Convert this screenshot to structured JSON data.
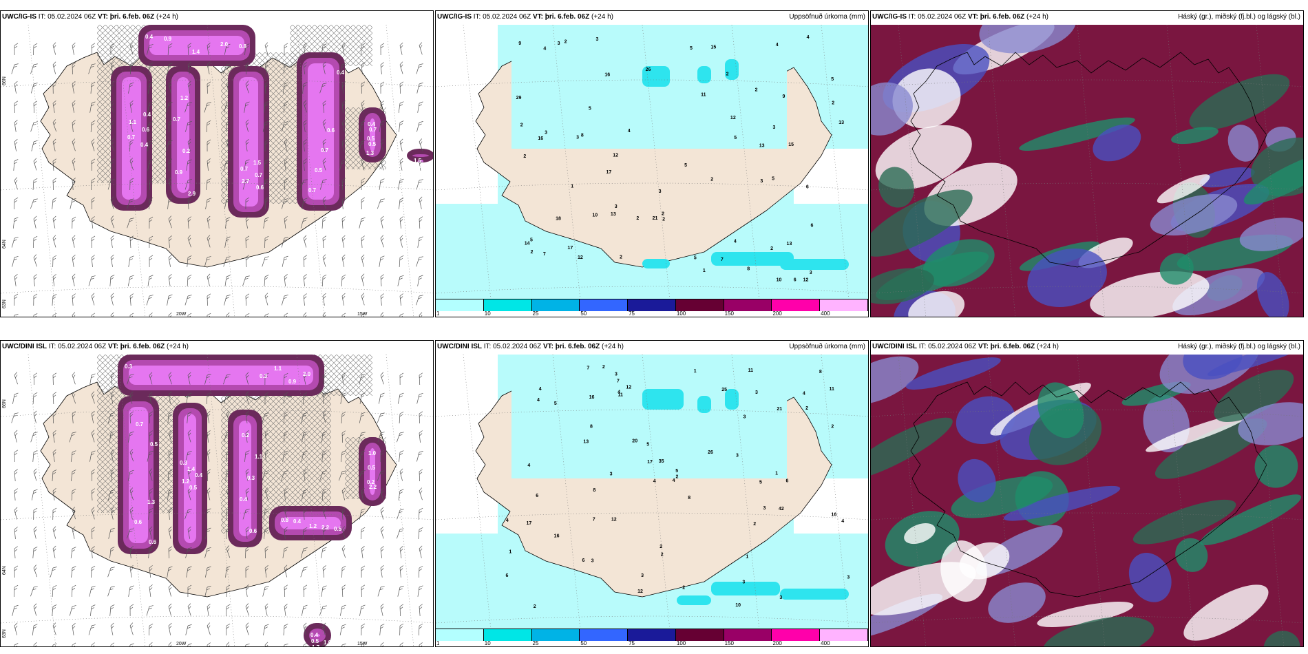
{
  "rows": [
    {
      "model": "UWC/IG-IS",
      "init_label": "IT:",
      "init": "05.02.2024 06Z",
      "valid_label": "VT:",
      "valid": "þri. 6.feb. 06Z",
      "lead": "(+24 h)",
      "icing_values": [
        "0.4",
        "0.4",
        "0.2",
        "0.6",
        "0.4",
        "0.7",
        "0.3",
        "2.0",
        "1.1",
        "0.9",
        "2.7",
        "0.7",
        "0.5",
        "0.4",
        "1.4",
        "0.6",
        "2.9",
        "0.7",
        "0.5",
        "0.4",
        "1.5",
        "0.9",
        "0.7",
        "1.2",
        "0.7",
        "0.7",
        "0.5",
        "1.3",
        "0.8",
        "0.4",
        "0.7",
        "1.5",
        "0.6",
        "1.3"
      ],
      "precip_values": [
        "3",
        "3",
        "3",
        "5",
        "12",
        "16",
        "21",
        "17",
        "13",
        "13",
        "15",
        "5",
        "9",
        "10",
        "12",
        "4",
        "5",
        "13",
        "5",
        "4",
        "6",
        "8",
        "7",
        "10",
        "13",
        "5",
        "5",
        "5",
        "9",
        "14",
        "3",
        "2",
        "7",
        "6",
        "2",
        "2",
        "3",
        "2",
        "1",
        "2",
        "2",
        "3",
        "6",
        "8",
        "2",
        "2",
        "2",
        "5",
        "3",
        "2",
        "1",
        "3",
        "2",
        "4",
        "2",
        "12",
        "12",
        "4",
        "18",
        "17",
        "15",
        "26",
        "29",
        "3",
        "2",
        "16",
        "4",
        "11"
      ],
      "lon_labels": [
        "20W",
        "15W"
      ],
      "lat_labels": [
        "66N",
        "64N",
        "63N"
      ]
    },
    {
      "model": "UWC/DINI ISL",
      "init_label": "IT:",
      "init": "05.02.2024 06Z",
      "valid_label": "VT:",
      "valid": "þri. 6.feb. 06Z",
      "lead": "(+24 h)",
      "icing_values": [
        "0.3",
        "0.5",
        "0.5",
        "0.6",
        "1.2",
        "2.2",
        "1.7",
        "2.0",
        "0.7",
        "1.2",
        "0.2",
        "0.8",
        "1.0",
        "0.5",
        "0.9",
        "0.6",
        "0.4",
        "1.1",
        "2.2",
        "0.5",
        "0.4",
        "1.1",
        "0.6",
        "1.4",
        "0.3",
        "0.4",
        "0.2",
        "1.0",
        "0.3",
        "1.3",
        "0.3",
        "0.4",
        "0.5"
      ],
      "precip_values": [
        "4",
        "4",
        "4",
        "3",
        "10",
        "2",
        "6",
        "3",
        "3",
        "8",
        "12",
        "17",
        "20",
        "16",
        "16",
        "11",
        "16",
        "7",
        "8",
        "8",
        "11",
        "12",
        "5",
        "11",
        "4",
        "5",
        "6",
        "2",
        "3",
        "5",
        "3",
        "7",
        "4",
        "4",
        "5",
        "6",
        "3",
        "3",
        "2",
        "4",
        "2",
        "2",
        "3",
        "2",
        "1",
        "1",
        "1",
        "2",
        "3",
        "13",
        "12",
        "3",
        "17",
        "21",
        "42",
        "26",
        "25",
        "35",
        "6",
        "7",
        "4",
        "8",
        "2",
        "2",
        "3",
        "4",
        "1"
      ],
      "lon_labels": [
        "20W",
        "15W"
      ],
      "lat_labels": [
        "66N",
        "64N",
        "63N"
      ]
    }
  ],
  "precip_title": "Uppsöfnuð úrkoma (mm)",
  "cloud_title": "Háský (gr.), miðský (fj.bl.) og lágský (bl.)",
  "colorbar": {
    "labels": [
      "1",
      "10",
      "25",
      "50",
      "75",
      "100",
      "150",
      "200",
      "400"
    ],
    "colors": [
      "#b3ffff",
      "#00e6e6",
      "#00b3e6",
      "#3366ff",
      "#1a1a99",
      "#660033",
      "#990066",
      "#ff00aa",
      "#ffb3ff"
    ]
  },
  "colors": {
    "land": "#f3e5d6",
    "icing_dark": "#6b2a5b",
    "icing_mid": "#b44ab0",
    "icing_light": "#e576f0",
    "precip_light": "#b8fbfb",
    "precip_mid": "#2ee4ee",
    "cloud_high": "#7a1640",
    "cloud_mid": "#1f8d6a",
    "cloud_low": "#4a50c0"
  }
}
